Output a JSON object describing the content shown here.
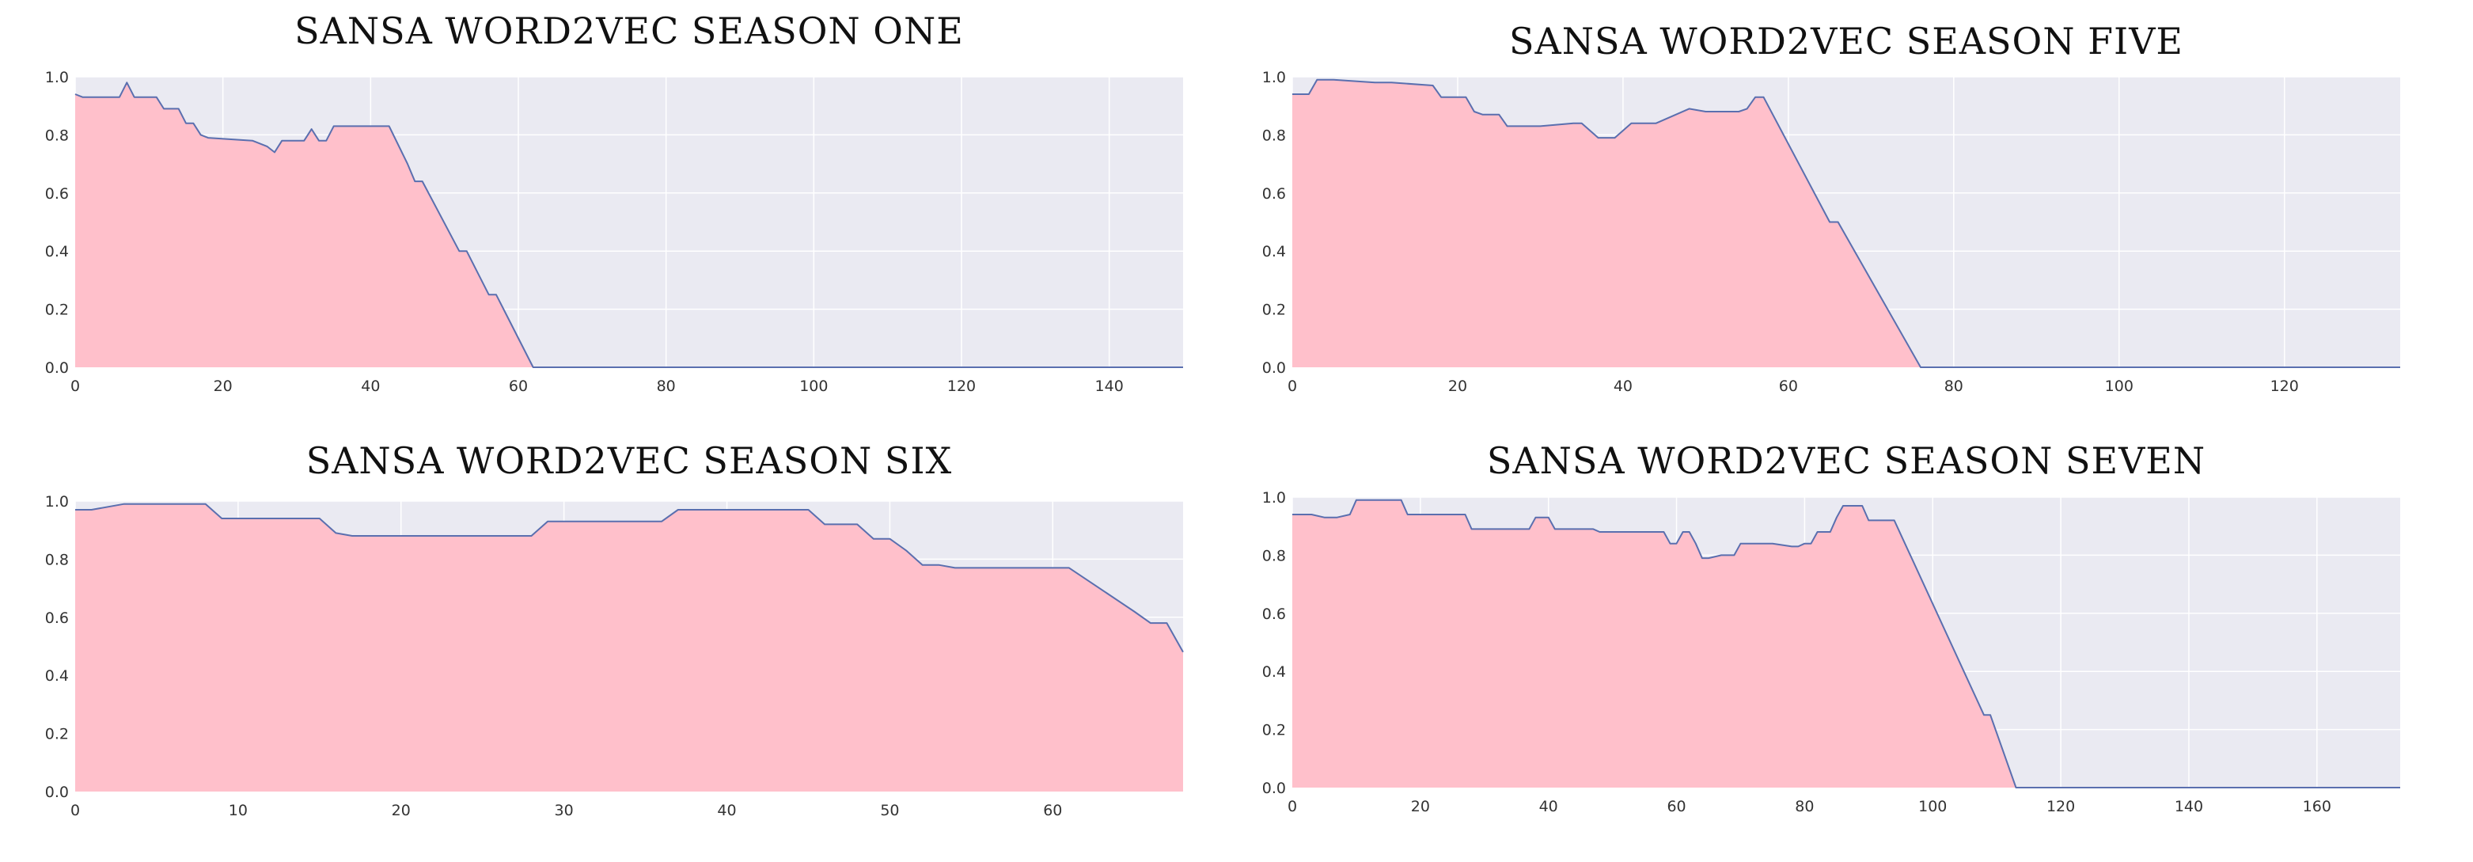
{
  "colors": {
    "fill": "#ffc0cb",
    "line": "#5a6faf",
    "plot_background": "#eaeaf2",
    "grid": "#ffffff"
  },
  "chart_data": [
    {
      "type": "area",
      "title": "SANSA WORD2VEC SEASON ONE",
      "xlabel": "",
      "ylabel": "",
      "xlim": [
        0,
        150
      ],
      "ylim": [
        0,
        1.0
      ],
      "grid": true,
      "xticks": [
        0,
        20,
        40,
        60,
        80,
        100,
        120,
        140
      ],
      "yticks": [
        0.0,
        0.2,
        0.4,
        0.6,
        0.8,
        1.0
      ],
      "x": [
        0,
        1,
        6,
        7,
        8,
        11,
        12,
        14,
        15,
        16,
        17,
        18,
        24,
        26,
        27,
        28,
        31,
        32,
        33,
        34,
        35,
        42,
        42.5,
        45,
        46,
        47,
        52,
        53,
        56,
        57,
        62,
        150
      ],
      "y": [
        0.94,
        0.93,
        0.93,
        0.98,
        0.93,
        0.93,
        0.89,
        0.89,
        0.84,
        0.84,
        0.8,
        0.79,
        0.78,
        0.76,
        0.74,
        0.78,
        0.78,
        0.82,
        0.78,
        0.78,
        0.83,
        0.83,
        0.83,
        0.7,
        0.64,
        0.64,
        0.4,
        0.4,
        0.25,
        0.25,
        0.0,
        0.0
      ]
    },
    {
      "type": "area",
      "title": "SANSA WORD2VEC SEASON FIVE",
      "xlabel": "",
      "ylabel": "",
      "xlim": [
        0,
        134
      ],
      "ylim": [
        0,
        1.0
      ],
      "grid": true,
      "xticks": [
        0,
        20,
        40,
        60,
        80,
        100,
        120
      ],
      "yticks": [
        0.0,
        0.2,
        0.4,
        0.6,
        0.8,
        1.0
      ],
      "x": [
        0,
        2,
        3,
        5,
        10,
        12,
        17,
        18,
        21,
        22,
        23,
        25,
        26,
        30,
        34,
        35,
        37,
        38,
        39,
        41,
        42,
        44,
        48,
        50,
        54,
        55,
        56,
        57,
        65,
        66,
        76,
        134
      ],
      "y": [
        0.94,
        0.94,
        0.99,
        0.99,
        0.98,
        0.98,
        0.97,
        0.93,
        0.93,
        0.88,
        0.87,
        0.87,
        0.83,
        0.83,
        0.84,
        0.84,
        0.79,
        0.79,
        0.79,
        0.84,
        0.84,
        0.84,
        0.89,
        0.88,
        0.88,
        0.89,
        0.93,
        0.93,
        0.5,
        0.5,
        0.0,
        0.0
      ]
    },
    {
      "type": "area",
      "title": "SANSA WORD2VEC SEASON SIX",
      "xlabel": "",
      "ylabel": "",
      "xlim": [
        0,
        68
      ],
      "ylim": [
        0,
        1.0
      ],
      "grid": true,
      "xticks": [
        0,
        10,
        20,
        30,
        40,
        50,
        60
      ],
      "yticks": [
        0.0,
        0.2,
        0.4,
        0.6,
        0.8,
        1.0
      ],
      "x": [
        0,
        1,
        3,
        5,
        8,
        9,
        15,
        16,
        17,
        18,
        22,
        23,
        25,
        26,
        28,
        29,
        30,
        36,
        37,
        38,
        44,
        45,
        46,
        47,
        48,
        49,
        50,
        51,
        52,
        53,
        54,
        55,
        58,
        60,
        61,
        65,
        66,
        67,
        68
      ],
      "y": [
        0.97,
        0.97,
        0.99,
        0.99,
        0.99,
        0.94,
        0.94,
        0.89,
        0.88,
        0.88,
        0.88,
        0.88,
        0.88,
        0.88,
        0.88,
        0.93,
        0.93,
        0.93,
        0.97,
        0.97,
        0.97,
        0.97,
        0.92,
        0.92,
        0.92,
        0.87,
        0.87,
        0.83,
        0.78,
        0.78,
        0.77,
        0.77,
        0.77,
        0.77,
        0.77,
        0.62,
        0.58,
        0.58,
        0.48
      ]
    },
    {
      "type": "area",
      "title": "SANSA WORD2VEC SEASON SEVEN",
      "xlabel": "",
      "ylabel": "",
      "xlim": [
        0,
        173
      ],
      "ylim": [
        0,
        1.0
      ],
      "grid": true,
      "xticks": [
        0,
        20,
        40,
        60,
        80,
        100,
        120,
        140,
        160
      ],
      "yticks": [
        0.0,
        0.2,
        0.4,
        0.6,
        0.8,
        1.0
      ],
      "x": [
        0,
        3,
        5,
        7,
        9,
        10,
        16,
        17,
        18,
        19,
        26,
        27,
        28,
        29,
        30,
        36,
        37,
        38,
        39,
        40,
        41,
        42,
        45,
        47,
        48,
        50,
        56,
        57,
        58,
        59,
        60,
        61,
        62,
        63,
        64,
        65,
        67,
        69,
        70,
        71,
        72,
        74,
        75,
        78,
        79,
        80,
        81,
        82,
        83,
        84,
        85,
        86,
        87,
        88,
        89,
        90,
        93,
        94,
        108,
        109,
        113,
        173
      ],
      "y": [
        0.94,
        0.94,
        0.93,
        0.93,
        0.94,
        0.99,
        0.99,
        0.99,
        0.94,
        0.94,
        0.94,
        0.94,
        0.89,
        0.89,
        0.89,
        0.89,
        0.89,
        0.93,
        0.93,
        0.93,
        0.89,
        0.89,
        0.89,
        0.89,
        0.88,
        0.88,
        0.88,
        0.88,
        0.88,
        0.84,
        0.84,
        0.88,
        0.88,
        0.84,
        0.79,
        0.79,
        0.8,
        0.8,
        0.84,
        0.84,
        0.84,
        0.84,
        0.84,
        0.83,
        0.83,
        0.84,
        0.84,
        0.88,
        0.88,
        0.88,
        0.93,
        0.97,
        0.97,
        0.97,
        0.97,
        0.92,
        0.92,
        0.92,
        0.25,
        0.25,
        0.0,
        0.0
      ]
    }
  ]
}
